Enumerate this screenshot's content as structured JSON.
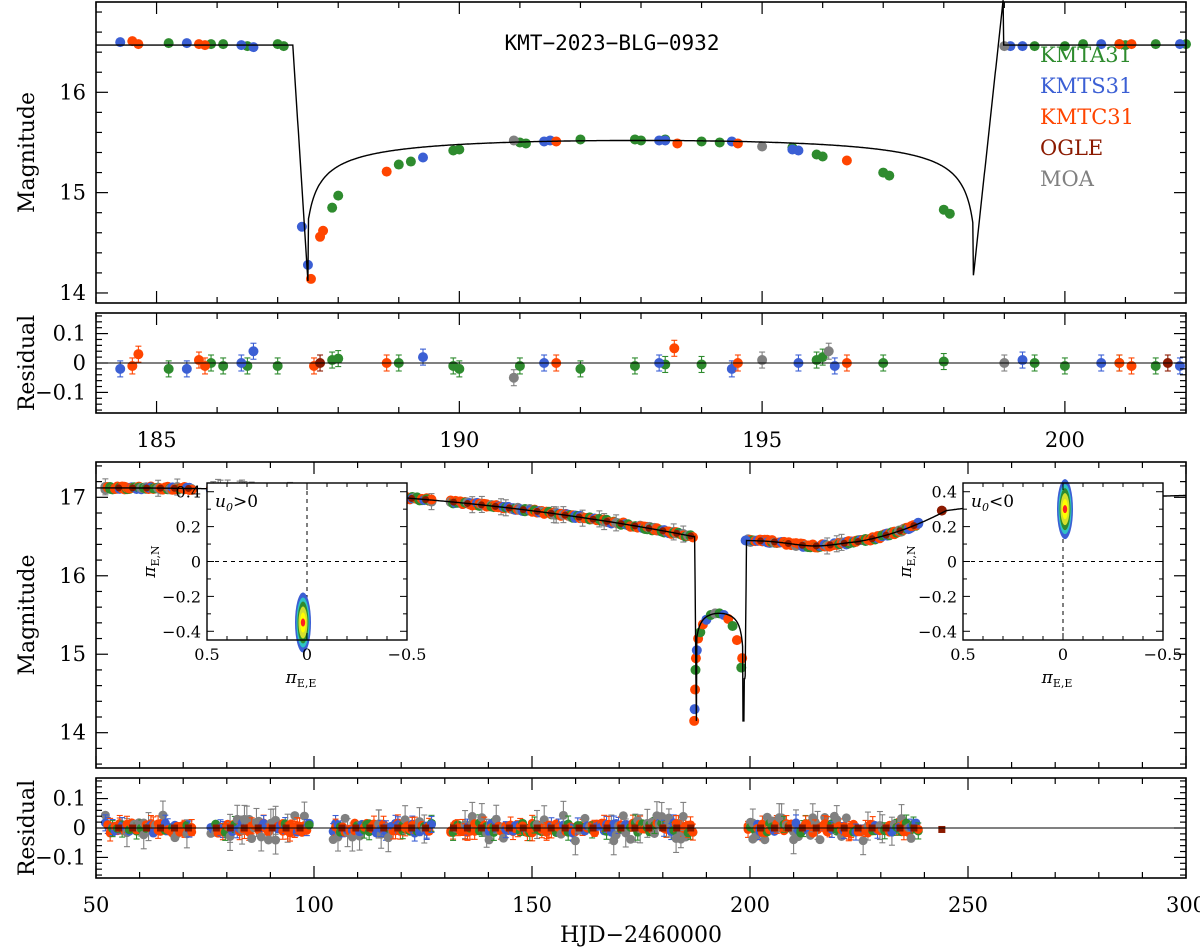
{
  "chart_data": [
    {
      "id": "top_lightcurve",
      "type": "scatter",
      "title": "KMT−2023−BLG−0932",
      "xlabel": "",
      "ylabel": "Magnitude",
      "xlim": [
        184,
        202
      ],
      "ylim": [
        16.9,
        13.9
      ],
      "yticks": [
        "14",
        "15",
        "16"
      ],
      "legend": {
        "placement": "top-right",
        "entries": [
          {
            "name": "KMTA31",
            "color": "#2e8b2e"
          },
          {
            "name": "KMTS31",
            "color": "#3b5fd4"
          },
          {
            "name": "KMTC31",
            "color": "#ff4500"
          },
          {
            "name": "OGLE",
            "color": "#8b1a00"
          },
          {
            "name": "MOA",
            "color": "#808080"
          }
        ]
      },
      "model": {
        "baseline": 16.47,
        "caustic_entry": 187.25,
        "caustic_exit": 198.6,
        "peak_entry": 14.12,
        "peak_exit": 14.12,
        "trough": 15.52
      },
      "series": [
        {
          "name": "KMTA31",
          "x": [
            185.2,
            185.9,
            186.1,
            186.5,
            187.0,
            187.1,
            187.9,
            188.0,
            189.0,
            189.2,
            189.9,
            190.0,
            191.0,
            191.1,
            192.0,
            192.9,
            193.0,
            193.4,
            194.0,
            194.3,
            195.5,
            195.9,
            196.0,
            197.0,
            197.1,
            198.0,
            198.1,
            199.5,
            200.0,
            200.3,
            200.9,
            201.0,
            201.5,
            202.0
          ],
          "y": [
            16.49,
            16.48,
            16.48,
            16.46,
            16.48,
            16.46,
            14.85,
            14.97,
            15.28,
            15.31,
            15.42,
            15.43,
            15.5,
            15.49,
            15.53,
            15.53,
            15.52,
            15.53,
            15.51,
            15.5,
            15.45,
            15.38,
            15.36,
            15.2,
            15.17,
            14.83,
            14.79,
            16.46,
            16.46,
            16.48,
            16.48,
            16.47,
            16.48,
            16.48
          ]
        },
        {
          "name": "KMTS31",
          "x": [
            184.4,
            185.5,
            186.4,
            186.6,
            187.4,
            187.5,
            189.4,
            191.4,
            191.5,
            193.3,
            193.4,
            194.5,
            195.5,
            195.6,
            199.1,
            199.3,
            200.6,
            201.9
          ],
          "y": [
            16.5,
            16.49,
            16.47,
            16.45,
            14.66,
            14.28,
            15.35,
            15.51,
            15.52,
            15.52,
            15.52,
            15.51,
            15.43,
            15.42,
            16.46,
            16.46,
            16.48,
            16.48
          ]
        },
        {
          "name": "KMTC31",
          "x": [
            184.6,
            184.7,
            185.7,
            185.8,
            187.55,
            187.7,
            187.75,
            188.8,
            191.6,
            193.6,
            194.6,
            196.4,
            200.9,
            201.1
          ],
          "y": [
            16.51,
            16.48,
            16.48,
            16.47,
            14.14,
            14.56,
            14.62,
            15.21,
            15.51,
            15.49,
            15.49,
            15.32,
            16.48,
            16.48
          ]
        },
        {
          "name": "MOA",
          "x": [
            190.9,
            195.0,
            199.0
          ],
          "y": [
            15.52,
            15.46,
            16.46
          ]
        }
      ]
    },
    {
      "id": "top_residual",
      "type": "scatter",
      "xlabel": "",
      "ylabel": "Residual",
      "xlim": [
        184,
        202
      ],
      "ylim": [
        -0.17,
        0.17
      ],
      "xticks": [
        "185",
        "190",
        "195",
        "200"
      ],
      "yticks": [
        "0.1",
        "0",
        "−0.1"
      ],
      "series": [
        {
          "name": "KMTA31",
          "x": [
            185.2,
            185.9,
            186.1,
            186.5,
            187.0,
            187.9,
            188.0,
            189.0,
            189.9,
            190.0,
            191.0,
            192.0,
            192.9,
            193.4,
            194.0,
            195.9,
            196.0,
            197.0,
            198.0,
            199.5,
            200.0,
            200.9,
            201.5
          ],
          "y": [
            -0.02,
            0.0,
            -0.01,
            -0.01,
            -0.01,
            0.01,
            0.015,
            0.0,
            -0.01,
            -0.02,
            -0.01,
            -0.02,
            -0.01,
            -0.005,
            -0.005,
            0.01,
            0.02,
            0.0,
            0.005,
            0.0,
            -0.01,
            0.0,
            -0.01
          ]
        },
        {
          "name": "KMTS31",
          "x": [
            184.4,
            185.5,
            186.4,
            186.6,
            189.4,
            191.4,
            193.3,
            194.5,
            195.6,
            196.2,
            199.3,
            200.6,
            201.9
          ],
          "y": [
            -0.02,
            -0.02,
            0.0,
            0.04,
            0.02,
            0.0,
            0.0,
            -0.02,
            0.0,
            -0.01,
            0.01,
            0.0,
            -0.01
          ]
        },
        {
          "name": "KMTC31",
          "x": [
            184.6,
            184.7,
            185.7,
            185.8,
            187.6,
            188.8,
            191.6,
            193.55,
            194.6,
            196.4,
            200.9,
            201.1
          ],
          "y": [
            -0.01,
            0.03,
            0.01,
            -0.01,
            -0.01,
            0.0,
            0.0,
            0.05,
            0.0,
            0.0,
            0.0,
            -0.01
          ]
        },
        {
          "name": "OGLE",
          "x": [
            187.7,
            201.7
          ],
          "y": [
            0.0,
            0.0
          ]
        },
        {
          "name": "MOA",
          "x": [
            190.9,
            195.0,
            196.1,
            199.0
          ],
          "y": [
            -0.05,
            0.01,
            0.04,
            0.0
          ]
        }
      ]
    },
    {
      "id": "bottom_lightcurve",
      "type": "scatter",
      "xlabel": "",
      "ylabel": "Magnitude",
      "xlim": [
        50,
        300
      ],
      "ylim": [
        17.45,
        13.55
      ],
      "yticks": [
        "14",
        "15",
        "16",
        "17"
      ],
      "model": {
        "baseline_start": 17.12,
        "baseline_end": 17.06,
        "bump_peak": 16.4,
        "bump_center": 217
      }
    },
    {
      "id": "bottom_residual",
      "type": "scatter",
      "xlabel": "HJD−2460000",
      "ylabel": "Residual",
      "xlim": [
        50,
        300
      ],
      "ylim": [
        -0.17,
        0.17
      ],
      "xticks": [
        "50",
        "100",
        "150",
        "200",
        "250",
        "300"
      ],
      "yticks": [
        "0.1",
        "0",
        "−0.1"
      ]
    },
    {
      "id": "inset_left",
      "type": "heatmap",
      "annotation": "u",
      "annotation_sub": "0",
      "annotation_rel": ">0",
      "xlabel": "π",
      "xlabel_sub": "E,E",
      "ylabel": "π",
      "ylabel_sub": "E,N",
      "xlim": [
        0.5,
        -0.5
      ],
      "ylim": [
        -0.45,
        0.45
      ],
      "xticks": [
        "0.5",
        "0",
        "−0.5"
      ],
      "yticks": [
        "0.4",
        "0.2",
        "0",
        "−0.2",
        "−0.4"
      ],
      "center": [
        0.02,
        -0.35
      ]
    },
    {
      "id": "inset_right",
      "type": "heatmap",
      "annotation": "u",
      "annotation_sub": "0",
      "annotation_rel": "<0",
      "xlabel": "π",
      "xlabel_sub": "E,E",
      "ylabel": "π",
      "ylabel_sub": "E,N",
      "xlim": [
        0.5,
        -0.5
      ],
      "ylim": [
        -0.45,
        0.45
      ],
      "xticks": [
        "0.5",
        "0",
        "−0.5"
      ],
      "yticks": [
        "0.4",
        "0.2",
        "0",
        "−0.2",
        "−0.4"
      ],
      "center": [
        -0.01,
        0.3
      ]
    }
  ]
}
